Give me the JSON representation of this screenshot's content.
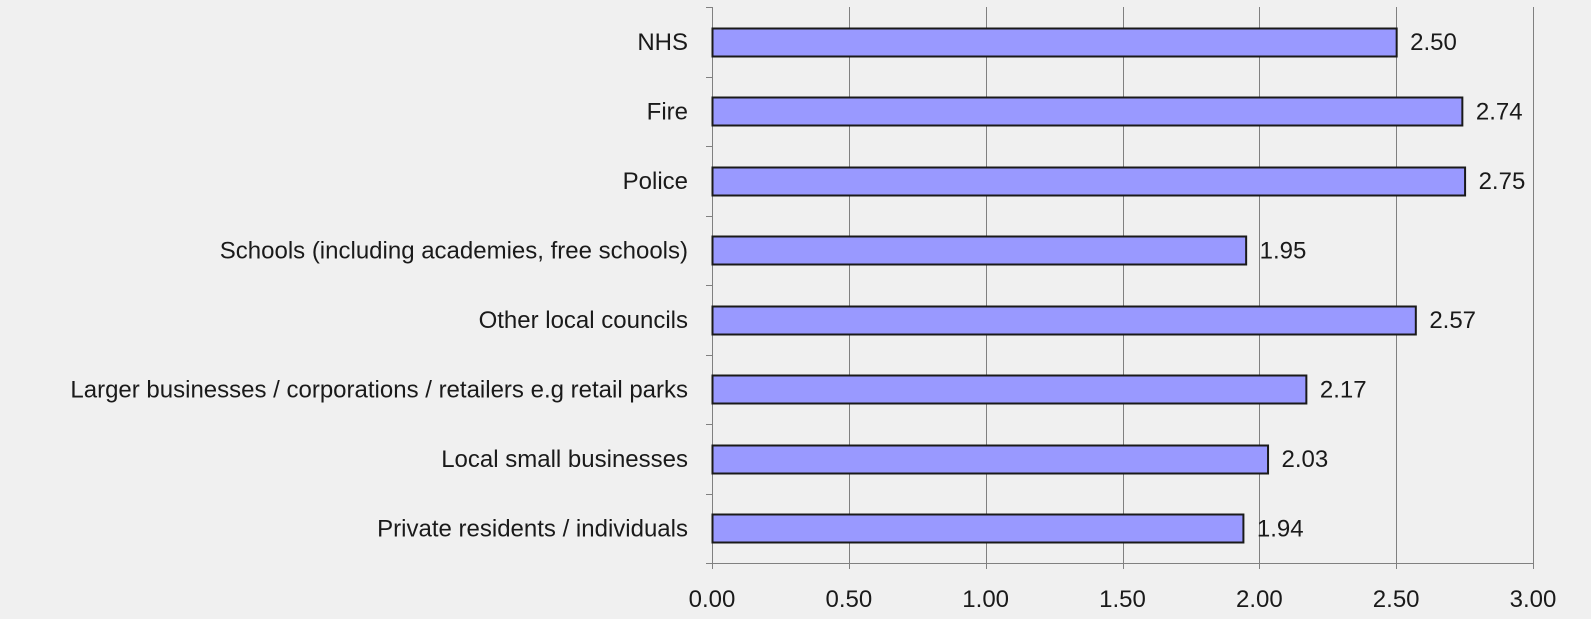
{
  "chart_data": {
    "type": "bar",
    "orientation": "horizontal",
    "categories": [
      "NHS",
      "Fire",
      "Police",
      "Schools (including academies, free schools)",
      "Other local councils",
      "Larger businesses / corporations / retailers e.g retail parks",
      "Local small businesses",
      "Private residents / individuals"
    ],
    "values": [
      2.5,
      2.74,
      2.75,
      1.95,
      2.57,
      2.17,
      2.03,
      1.94
    ],
    "value_labels": [
      "2.50",
      "2.74",
      "2.75",
      "1.95",
      "2.57",
      "2.17",
      "2.03",
      "1.94"
    ],
    "title": "",
    "xlabel": "",
    "ylabel": "",
    "xlim": [
      0,
      3
    ],
    "x_ticks": [
      "0.00",
      "0.50",
      "1.00",
      "1.50",
      "2.00",
      "2.50",
      "3.00"
    ],
    "x_tick_values": [
      0,
      0.5,
      1,
      1.5,
      2,
      2.5,
      3
    ],
    "grid": "vertical",
    "legend": "none",
    "colors": {
      "bar_fill": "#9999ff",
      "bar_stroke": "#1a1a1a",
      "gridline": "#808080",
      "axis": "#808080",
      "background": "#f0f0f0"
    }
  }
}
